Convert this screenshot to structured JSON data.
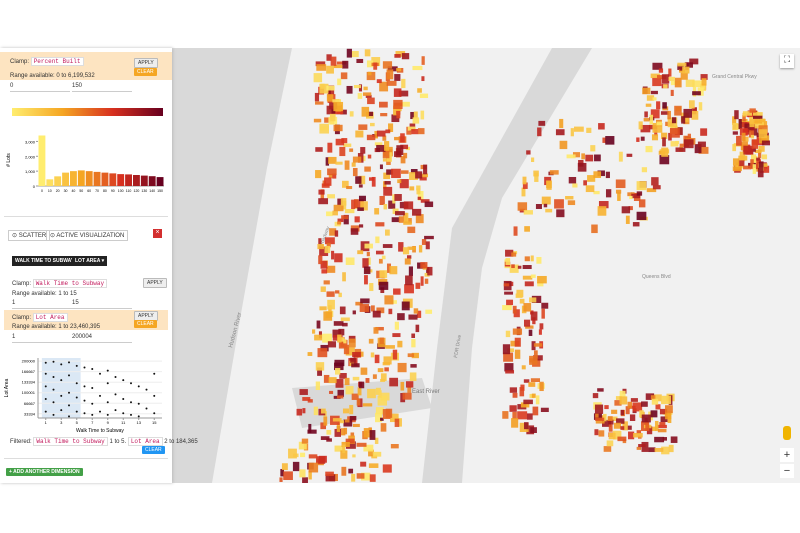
{
  "panel": {
    "percent_built": {
      "clamp": "Clamp:",
      "field": "Percent Built",
      "apply": "APPLY",
      "clear": "CLEAR",
      "range": "Range available: 0 to 6,199,532",
      "min": "0",
      "max": "150"
    },
    "tabs": {
      "scatter": "SCATTER",
      "active": "ACTIVE VISUALIZATION",
      "close": "×"
    },
    "dimensions": [
      "WALK TIME TO SUBWAY ▾",
      "LOT AREA ▾"
    ],
    "walk_clamp": {
      "clamp": "Clamp:",
      "field": "Walk Time to Subway",
      "apply": "APPLY",
      "range": "Range available: 1 to 15",
      "min": "1",
      "max": "15"
    },
    "lot_clamp": {
      "clamp": "Clamp:",
      "field": "Lot Area",
      "apply": "APPLY",
      "clear": "CLEAR",
      "range": "Range available: 1 to 23,460,395",
      "min": "1",
      "max": "200004"
    },
    "filtered": {
      "label": "Filtered:",
      "f1": "Walk Time to Subway",
      "t1": "1 to 5.",
      "f2": "Lot Area",
      "t2": "2 to 184,365",
      "clear": "CLEAR"
    },
    "add_button": "+ ADD ANOTHER DIMENSION"
  },
  "chart_data": [
    {
      "type": "bar",
      "ylabel": "# Lots",
      "color_scale": [
        "#ffed6f",
        "#f5a623",
        "#d7301f",
        "#67001f"
      ],
      "categories": [
        "0",
        "10",
        "20",
        "30",
        "40",
        "50",
        "60",
        "70",
        "80",
        "90",
        "100",
        "110",
        "120",
        "130",
        "140",
        "150"
      ],
      "values": [
        3400,
        450,
        650,
        900,
        1000,
        1050,
        1000,
        950,
        900,
        850,
        800,
        780,
        740,
        700,
        660,
        600
      ],
      "ylim": [
        0,
        3500
      ],
      "yticks": [
        0,
        {
          "value": 1000,
          "label": "1,000"
        },
        {
          "value": 2000,
          "label": "2,000"
        },
        {
          "value": 3000,
          "label": "3,000"
        }
      ]
    },
    {
      "type": "scatter",
      "xlabel": "Walk Time to Subway",
      "ylabel": "Lot Area",
      "color": "#111111",
      "x": [
        1,
        1,
        1,
        1,
        1,
        2,
        2,
        2,
        2,
        2,
        3,
        3,
        3,
        3,
        4,
        4,
        4,
        4,
        4,
        5,
        5,
        5,
        5,
        6,
        6,
        6,
        6,
        7,
        7,
        7,
        7,
        8,
        8,
        8,
        9,
        9,
        9,
        9,
        10,
        10,
        10,
        11,
        11,
        11,
        12,
        12,
        12,
        13,
        13,
        13,
        14,
        14,
        15,
        15,
        15
      ],
      "y": [
        195000,
        160000,
        120000,
        80000,
        40000,
        198000,
        150000,
        110000,
        70000,
        30000,
        190000,
        140000,
        90000,
        45000,
        196000,
        155000,
        100000,
        60000,
        25000,
        185000,
        130000,
        85000,
        40000,
        180000,
        120000,
        75000,
        35000,
        175000,
        115000,
        65000,
        30000,
        160000,
        90000,
        40000,
        170000,
        130000,
        70000,
        30000,
        150000,
        95000,
        45000,
        140000,
        80000,
        35000,
        130000,
        70000,
        30000,
        120000,
        65000,
        25000,
        110000,
        50000,
        160000,
        90000,
        35000
      ],
      "xlim": [
        0,
        16
      ],
      "ylim": [
        20000,
        210000
      ],
      "xticks": [
        1,
        3,
        5,
        7,
        9,
        11,
        13,
        15
      ],
      "yticks": [
        33334,
        66667,
        100001,
        133334,
        166667,
        200000
      ]
    }
  ],
  "map": {
    "labels": [
      "East River",
      "FDR Drive",
      "Broadway",
      "Grand Central Pkwy",
      "Queens Blvd",
      "Hudson River"
    ],
    "zoom_in": "+",
    "zoom_out": "−"
  }
}
